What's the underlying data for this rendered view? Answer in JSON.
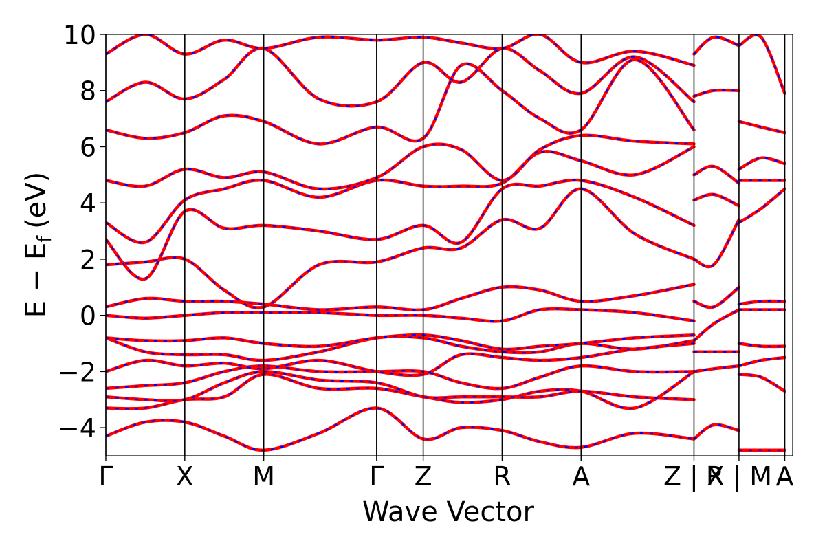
{
  "chart_data": {
    "type": "line",
    "title": "",
    "xlabel": "Wave Vector",
    "ylabel_parts": {
      "main": "E − E",
      "sub": "f",
      "unit": "(eV)"
    },
    "xlim": [
      0,
      8.7
    ],
    "ylim": [
      -5,
      10
    ],
    "yticks": [
      -4,
      -2,
      0,
      2,
      4,
      6,
      8,
      10
    ],
    "ytick_labels": [
      "−4",
      "−2",
      "0",
      "2",
      "4",
      "6",
      "8",
      "10"
    ],
    "high_symmetry_points": [
      {
        "label": "Γ",
        "x": 0.0
      },
      {
        "label": "X",
        "x": 1.0
      },
      {
        "label": "M",
        "x": 2.0
      },
      {
        "label": "Γ",
        "x": 3.43
      },
      {
        "label": "Z",
        "x": 4.02
      },
      {
        "label": "R",
        "x": 5.02
      },
      {
        "label": "A",
        "x": 6.02
      },
      {
        "label": "Z | X",
        "x": 7.45
      },
      {
        "label": "R | M",
        "x": 8.02
      },
      {
        "label": "A",
        "x": 8.6
      }
    ],
    "colors": {
      "series_primary": "#ff0000",
      "series_secondary": "#0000ff",
      "axis": "#000000"
    },
    "series": [
      {
        "color": "#ff0000",
        "dashed_overlay_color": "#0000ff",
        "x": [
          0,
          0.5,
          1.0,
          1.5,
          2.0,
          2.7,
          3.43,
          4.02,
          4.5,
          5.02,
          5.5,
          6.02,
          6.7,
          7.45
        ],
        "y": [
          -4.3,
          -3.8,
          -3.8,
          -4.3,
          -4.8,
          -4.2,
          -3.3,
          -4.4,
          -4.0,
          -4.1,
          -4.5,
          -4.7,
          -4.2,
          -4.4
        ]
      },
      {
        "x": [
          0,
          0.5,
          1.0,
          1.5,
          2.0,
          2.7,
          3.43,
          4.02,
          4.5,
          5.02,
          5.5,
          6.02,
          6.7,
          7.45
        ],
        "y": [
          -3.3,
          -3.3,
          -3.0,
          -2.9,
          -2.1,
          -2.6,
          -2.6,
          -2.9,
          -3.1,
          -3.0,
          -2.7,
          -2.7,
          -3.3,
          -2.0
        ]
      },
      {
        "x": [
          0,
          0.5,
          1.0,
          1.5,
          2.0,
          2.7,
          3.43,
          4.02,
          4.5,
          5.02,
          5.5,
          6.02,
          6.7,
          7.45
        ],
        "y": [
          -2.9,
          -3.0,
          -3.0,
          -2.4,
          -2.0,
          -2.3,
          -2.4,
          -2.9,
          -2.9,
          -2.9,
          -2.9,
          -2.7,
          -2.9,
          -3.0
        ]
      },
      {
        "x": [
          0,
          0.5,
          1.0,
          1.5,
          2.0,
          2.7,
          3.43,
          4.02,
          4.5,
          5.02,
          5.5,
          6.02,
          6.7,
          7.45
        ],
        "y": [
          -2.6,
          -2.5,
          -2.4,
          -2.0,
          -1.8,
          -2.0,
          -2.0,
          -2.0,
          -2.4,
          -2.6,
          -2.2,
          -1.8,
          -2.0,
          -2.0
        ]
      },
      {
        "x": [
          0,
          0.5,
          1.0,
          1.5,
          2.0,
          2.7,
          3.43,
          4.02,
          4.5,
          5.02,
          5.5,
          6.02,
          6.7,
          7.45
        ],
        "y": [
          -2.0,
          -1.6,
          -1.8,
          -1.7,
          -1.9,
          -1.6,
          -2.0,
          -2.1,
          -1.4,
          -1.5,
          -1.6,
          -1.5,
          -1.2,
          -1.0
        ]
      },
      {
        "x": [
          0,
          0.5,
          1.0,
          1.5,
          2.0,
          2.7,
          3.43,
          4.02,
          4.5,
          5.02,
          5.5,
          6.02,
          6.7,
          7.45
        ],
        "y": [
          -0.8,
          -1.3,
          -1.4,
          -1.4,
          -1.6,
          -1.3,
          -0.8,
          -0.8,
          -1.1,
          -1.3,
          -1.3,
          -1.0,
          -1.2,
          -0.9
        ]
      },
      {
        "x": [
          0,
          0.5,
          1.0,
          1.5,
          2.0,
          2.7,
          3.43,
          4.02,
          4.5,
          5.02,
          5.5,
          6.02,
          6.7,
          7.45
        ],
        "y": [
          -0.8,
          -0.9,
          -0.9,
          -0.8,
          -1.0,
          -1.1,
          -0.8,
          -0.7,
          -0.9,
          -1.2,
          -1.1,
          -1.0,
          -0.8,
          -0.7
        ]
      },
      {
        "x": [
          0,
          0.5,
          1.0,
          1.5,
          2.0,
          2.7,
          3.43,
          4.02,
          4.5,
          5.02,
          5.5,
          6.02,
          6.7,
          7.45
        ],
        "y": [
          0.0,
          -0.1,
          0.0,
          0.1,
          0.1,
          0.1,
          0.0,
          0.0,
          -0.1,
          -0.2,
          0.2,
          0.2,
          0.1,
          -0.2
        ]
      },
      {
        "x": [
          0,
          0.5,
          1.0,
          1.5,
          2.0,
          2.7,
          3.43,
          4.02,
          4.5,
          5.02,
          5.5,
          6.02,
          6.7,
          7.45
        ],
        "y": [
          0.3,
          0.6,
          0.5,
          0.5,
          0.4,
          0.2,
          0.3,
          0.2,
          0.6,
          1.0,
          0.9,
          0.5,
          0.7,
          1.1
        ]
      },
      {
        "x": [
          0,
          0.5,
          1.0,
          1.5,
          2.0,
          2.7,
          3.43,
          4.02,
          4.5,
          5.02,
          5.5,
          6.02,
          6.7,
          7.45
        ],
        "y": [
          1.8,
          1.9,
          2.0,
          0.9,
          0.3,
          1.8,
          1.9,
          2.4,
          2.4,
          3.4,
          3.1,
          4.5,
          2.9,
          2.0
        ]
      },
      {
        "x": [
          0,
          0.5,
          1.0,
          1.5,
          2.0,
          2.7,
          3.43,
          4.02,
          4.5,
          5.02,
          5.5,
          6.02,
          6.7,
          7.45
        ],
        "y": [
          2.7,
          1.3,
          3.7,
          3.1,
          3.2,
          3.0,
          2.7,
          3.2,
          2.6,
          4.5,
          4.6,
          4.8,
          4.2,
          3.2
        ]
      },
      {
        "x": [
          0,
          0.5,
          1.0,
          1.5,
          2.0,
          2.7,
          3.43,
          4.02,
          4.5,
          5.02,
          5.5,
          6.02,
          6.7,
          7.45
        ],
        "y": [
          3.3,
          2.6,
          4.1,
          4.5,
          4.8,
          4.2,
          4.8,
          4.6,
          4.6,
          4.7,
          5.8,
          5.5,
          5.0,
          6.0
        ]
      },
      {
        "x": [
          0,
          0.5,
          1.0,
          1.5,
          2.0,
          2.7,
          3.43,
          4.02,
          4.5,
          5.02,
          5.5,
          6.02,
          6.7,
          7.45
        ],
        "y": [
          4.8,
          4.6,
          5.2,
          4.9,
          5.1,
          4.5,
          4.9,
          6.0,
          5.9,
          4.8,
          5.9,
          6.4,
          6.2,
          6.1
        ]
      },
      {
        "x": [
          0,
          0.5,
          1.0,
          1.5,
          2.0,
          2.7,
          3.43,
          4.02,
          4.5,
          5.02,
          5.5,
          6.02,
          6.7,
          7.45
        ],
        "y": [
          6.6,
          6.3,
          6.5,
          7.1,
          6.9,
          6.1,
          6.7,
          6.3,
          8.9,
          8.0,
          7.0,
          6.6,
          9.1,
          6.6
        ]
      },
      {
        "x": [
          0,
          0.5,
          1.0,
          1.5,
          2.0,
          2.7,
          3.43,
          4.02,
          4.5,
          5.02,
          5.5,
          6.02,
          6.7,
          7.45
        ],
        "y": [
          7.6,
          8.3,
          7.7,
          8.4,
          9.5,
          7.7,
          7.6,
          9.0,
          8.3,
          9.5,
          8.7,
          7.9,
          9.2,
          7.6
        ]
      },
      {
        "x": [
          0,
          0.5,
          1.0,
          1.5,
          2.0,
          2.7,
          3.43,
          4.02,
          4.5,
          5.02,
          5.5,
          6.02,
          6.7,
          7.45
        ],
        "y": [
          9.3,
          10.0,
          9.3,
          9.8,
          9.5,
          9.9,
          9.8,
          9.9,
          9.7,
          9.5,
          10.0,
          9.0,
          9.4,
          8.9
        ]
      },
      {
        "x": [
          7.45,
          7.7,
          8.02
        ],
        "y": [
          -4.4,
          -3.9,
          -4.1
        ]
      },
      {
        "x": [
          7.45,
          7.7,
          8.02
        ],
        "y": [
          -2.0,
          -1.9,
          -1.8
        ]
      },
      {
        "x": [
          7.45,
          7.7,
          8.02
        ],
        "y": [
          -1.3,
          -1.3,
          -1.3
        ]
      },
      {
        "x": [
          7.45,
          7.7,
          8.02
        ],
        "y": [
          -0.9,
          -0.3,
          0.2
        ]
      },
      {
        "x": [
          7.45,
          7.7,
          8.02
        ],
        "y": [
          0.5,
          0.3,
          1.0
        ]
      },
      {
        "x": [
          7.45,
          7.7,
          8.02
        ],
        "y": [
          2.0,
          1.8,
          3.4
        ]
      },
      {
        "x": [
          7.45,
          7.7,
          8.02
        ],
        "y": [
          4.1,
          4.3,
          3.9
        ]
      },
      {
        "x": [
          7.45,
          7.7,
          8.02
        ],
        "y": [
          5.0,
          5.3,
          4.7
        ]
      },
      {
        "x": [
          7.45,
          7.7,
          8.02
        ],
        "y": [
          7.8,
          8.0,
          8.0
        ]
      },
      {
        "x": [
          7.45,
          7.7,
          8.02
        ],
        "y": [
          9.3,
          9.9,
          9.6
        ]
      },
      {
        "x": [
          8.02,
          8.3,
          8.6
        ],
        "y": [
          -4.8,
          -4.8,
          -4.8
        ]
      },
      {
        "x": [
          8.02,
          8.3,
          8.6
        ],
        "y": [
          -2.1,
          -2.2,
          -2.7
        ]
      },
      {
        "x": [
          8.02,
          8.3,
          8.6
        ],
        "y": [
          -1.8,
          -1.6,
          -1.5
        ]
      },
      {
        "x": [
          8.02,
          8.3,
          8.6
        ],
        "y": [
          -1.0,
          -1.1,
          -1.1
        ]
      },
      {
        "x": [
          8.02,
          8.3,
          8.6
        ],
        "y": [
          0.2,
          0.2,
          0.2
        ]
      },
      {
        "x": [
          8.02,
          8.3,
          8.6
        ],
        "y": [
          0.4,
          0.5,
          0.5
        ]
      },
      {
        "x": [
          8.02,
          8.3,
          8.6
        ],
        "y": [
          3.3,
          3.8,
          4.5
        ]
      },
      {
        "x": [
          8.02,
          8.3,
          8.6
        ],
        "y": [
          4.8,
          4.8,
          4.8
        ]
      },
      {
        "x": [
          8.02,
          8.3,
          8.6
        ],
        "y": [
          5.2,
          5.6,
          5.4
        ]
      },
      {
        "x": [
          8.02,
          8.3,
          8.6
        ],
        "y": [
          6.9,
          6.7,
          6.5
        ]
      },
      {
        "x": [
          8.02,
          8.3,
          8.6
        ],
        "y": [
          9.6,
          9.9,
          7.9
        ]
      }
    ]
  }
}
